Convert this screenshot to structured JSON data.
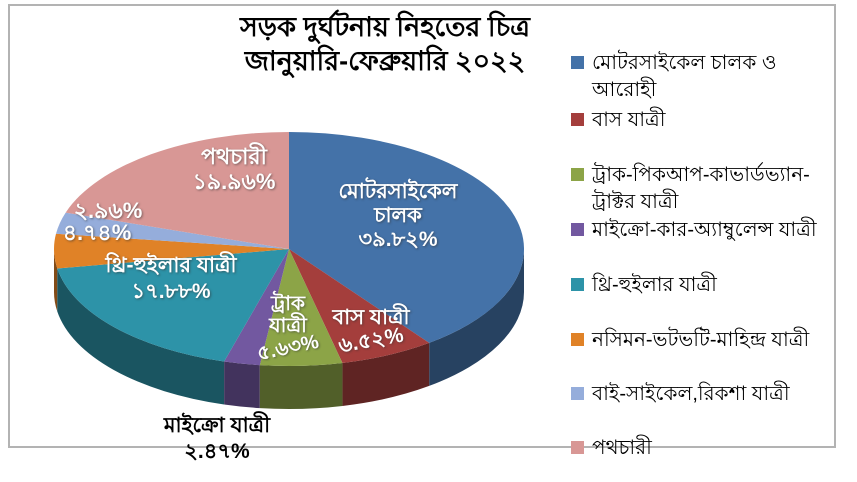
{
  "title": {
    "line1": "সড়ক দুর্ঘটনায় নিহতের চিত্র",
    "line2": "জানুয়ারি-ফেব্রুয়ারি ২০২২"
  },
  "chart_data": {
    "type": "pie",
    "style": "3d",
    "title": "সড়ক দুর্ঘটনায় নিহতের চিত্র জানুয়ারি-ফেব্রুয়ারি ২০২২",
    "unit": "percent",
    "direction": "clockwise",
    "start_angle_deg": 0,
    "legend_position": "right",
    "total_pct": 99.98,
    "slices": [
      {
        "legend_label": "মোটরসাইকেল চালক ও আরোহী",
        "legend_lines": [
          "মোটরসাইকেল চালক ও",
          "আরোহী"
        ],
        "pct": 39.82,
        "pct_label": "৩৯.৮২%",
        "pie_label_lines": [
          "মোটরসাইকেল",
          "চালক",
          "৩৯.৮২%"
        ],
        "color": "#4472A8"
      },
      {
        "legend_label": "বাস যাত্রী",
        "legend_lines": [
          "বাস যাত্রী"
        ],
        "pct": 6.52,
        "pct_label": "৬.৫২%",
        "pie_label_lines": [
          "বাস যাত্রী",
          "৬.৫২%"
        ],
        "color": "#A43E3C"
      },
      {
        "legend_label": "ট্রাক-পিকআপ-কাভার্ডভ্যান-ট্রাক্টর যাত্রী",
        "legend_lines": [
          "ট্রাক-পিকআপ-কাভার্ডভ্যান-",
          "ট্রাক্টর যাত্রী"
        ],
        "pct": 5.63,
        "pct_label": "৫.৬৩%",
        "pie_label_lines": [
          "ট্রাক",
          "যাত্রী",
          "৫.৬৩%"
        ],
        "color": "#8CA447"
      },
      {
        "legend_label": "মাইক্রো-কার-অ্যাম্বুলেন্স যাত্রী",
        "legend_lines": [
          "মাইক্রো-কার-অ্যাম্বুলেন্স যাত্রী"
        ],
        "pct": 2.47,
        "pct_label": "২.৪৭%",
        "pie_label_lines": [
          "মাইক্রো যাত্রী",
          "২.৪৭%"
        ],
        "label_outside": true,
        "color": "#7258A0"
      },
      {
        "legend_label": "থ্রি-হুইলার যাত্রী",
        "legend_lines": [
          "থ্রি-হুইলার যাত্রী"
        ],
        "pct": 17.88,
        "pct_label": "১৭.৮৮%",
        "pie_label_lines": [
          "থ্রি-হুইলার যাত্রী",
          "১৭.৮৮%"
        ],
        "color": "#2D93A8"
      },
      {
        "legend_label": "নসিমন-ভটভটি-মাহিন্দ্র যাত্রী",
        "legend_lines": [
          "নসিমন-ভটভটি-মাহিন্দ্র যাত্রী"
        ],
        "pct": 4.74,
        "pct_label": "৪.৭৪%",
        "pie_label_lines": [
          "৪.৭৪%"
        ],
        "color": "#E08227"
      },
      {
        "legend_label": "বাই-সাইকেল,রিকশা যাত্রী",
        "legend_lines": [
          "বাই-সাইকেল,রিকশা যাত্রী"
        ],
        "pct": 2.96,
        "pct_label": "২.৯৬%",
        "pie_label_lines": [
          "২.৯৬%"
        ],
        "color": "#95ADDB"
      },
      {
        "legend_label": "পথচারী",
        "legend_lines": [
          "পথচারী"
        ],
        "pct": 19.96,
        "pct_label": "১৯.৯৬%",
        "pie_label_lines": [
          "পথচারী",
          "১৯.৯৬%"
        ],
        "color": "#D89795"
      }
    ]
  }
}
